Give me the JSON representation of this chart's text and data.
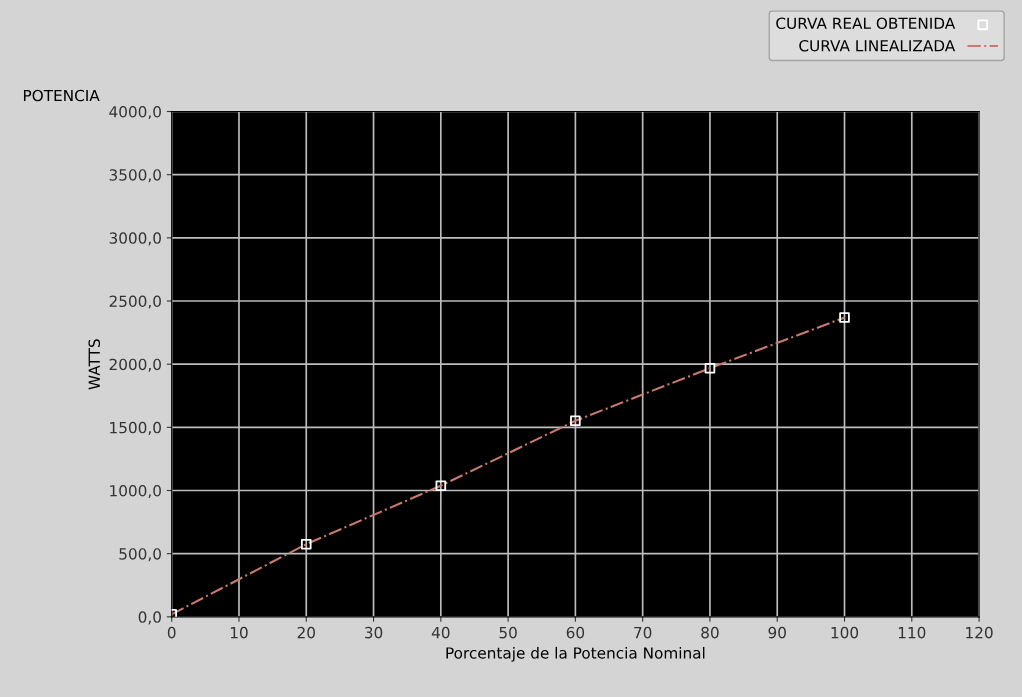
{
  "chart_data": {
    "type": "scatter",
    "title": "POTENCIA",
    "xlabel": "Porcentaje de la Potencia Nominal",
    "ylabel": "WATTS",
    "series": [
      {
        "name": "CURVA REAL OBTENIDA",
        "color": "#ffffff",
        "marker": "square",
        "x": [
          0,
          20,
          40,
          60,
          80,
          100
        ],
        "values": [
          20,
          575,
          1038,
          1552,
          1968,
          2369
        ]
      },
      {
        "name": "CURVA LINEALIZADA",
        "type": "line",
        "color": "#c87a6e",
        "line_style": "dashdot",
        "marker": "none",
        "x": [
          0,
          20,
          40,
          60,
          80,
          100
        ],
        "values": [
          20,
          575,
          1038,
          1552,
          1968,
          2369
        ]
      }
    ],
    "xlim": [
      0,
      120
    ],
    "xticks": [
      0,
      10,
      20,
      30,
      40,
      50,
      60,
      70,
      80,
      90,
      100,
      110,
      120
    ],
    "ylim": [
      0,
      4000
    ],
    "yticks": [
      {
        "value": 0,
        "label": "0,0"
      },
      {
        "value": 500,
        "label": "500,0"
      },
      {
        "value": 1000,
        "label": "1000,0"
      },
      {
        "value": 1500,
        "label": "1500,0"
      },
      {
        "value": 2000,
        "label": "2000,0"
      },
      {
        "value": 2500,
        "label": "2500,0"
      },
      {
        "value": 3000,
        "label": "3000,0"
      },
      {
        "value": 3500,
        "label": "3500,0"
      },
      {
        "value": 4000,
        "label": "4000,0"
      }
    ],
    "grid": true,
    "legend": "top right"
  }
}
